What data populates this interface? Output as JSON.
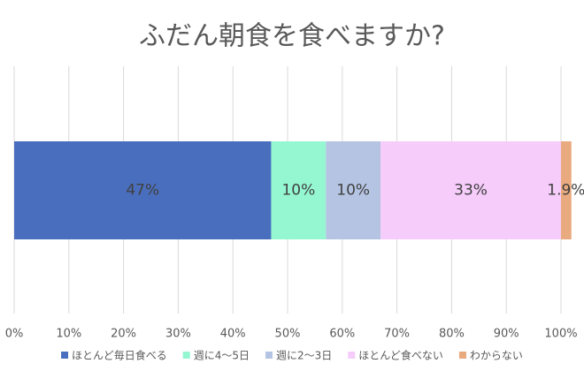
{
  "chart_data": {
    "type": "stacked-barh",
    "title": "ふだん朝食を食べますか?",
    "categories": [
      null
    ],
    "series": [
      {
        "name": "ほとんど毎日食べる",
        "color": "#4a6ebe",
        "values": [
          47
        ],
        "value_labels": [
          "47%"
        ]
      },
      {
        "name": "週に4〜5日",
        "color": "#94f7d2",
        "values": [
          10
        ],
        "value_labels": [
          "10%"
        ]
      },
      {
        "name": "週に2〜3日",
        "color": "#b4c4e2",
        "values": [
          10
        ],
        "value_labels": [
          "10%"
        ]
      },
      {
        "name": "ほとんど食べない",
        "color": "#f5ccfa",
        "values": [
          33
        ],
        "value_labels": [
          "33%"
        ]
      },
      {
        "name": "わからない",
        "color": "#e8aa7e",
        "values": [
          1.9
        ],
        "value_labels": [
          "1.9%"
        ]
      }
    ],
    "xlim": [
      0,
      100
    ],
    "xticks": [
      {
        "value": 0,
        "label": "0%"
      },
      {
        "value": 10,
        "label": "10%"
      },
      {
        "value": 20,
        "label": "20%"
      },
      {
        "value": 30,
        "label": "30%"
      },
      {
        "value": 40,
        "label": "40%"
      },
      {
        "value": 50,
        "label": "50%"
      },
      {
        "value": 60,
        "label": "60%"
      },
      {
        "value": 70,
        "label": "70%"
      },
      {
        "value": 80,
        "label": "80%"
      },
      {
        "value": 90,
        "label": "90%"
      },
      {
        "value": 100,
        "label": "100%"
      }
    ],
    "grid": true,
    "legend": "bottom"
  }
}
